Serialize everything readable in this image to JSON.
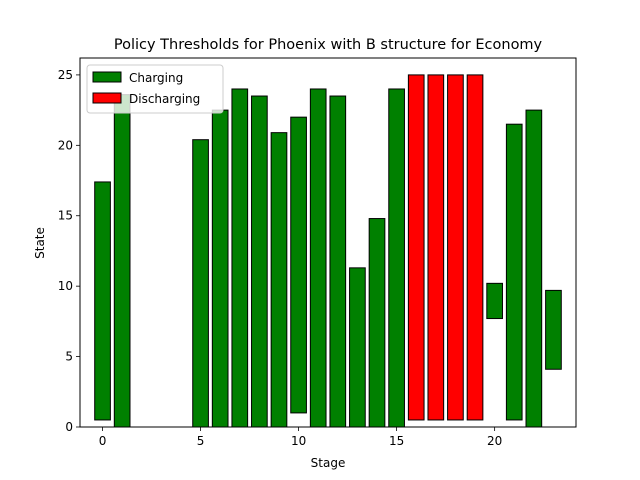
{
  "chart_data": {
    "type": "bar",
    "title": "Policy Thresholds for Phoenix with B structure for Economy",
    "xlabel": "Stage",
    "ylabel": "State",
    "xlim": [
      -1.15,
      24.15
    ],
    "ylim": [
      0,
      26.2
    ],
    "xticks": [
      0,
      5,
      10,
      15,
      20
    ],
    "yticks": [
      0,
      5,
      10,
      15,
      20,
      25
    ],
    "grid": false,
    "legend_placement": "top-left",
    "series": [
      {
        "name": "Charging",
        "color": "#008000",
        "bars": [
          {
            "x": 0,
            "bottom": 0.5,
            "top": 17.4
          },
          {
            "x": 1,
            "bottom": 0.0,
            "top": 23.6
          },
          {
            "x": 2,
            "bottom": 0.0,
            "top": 0.0
          },
          {
            "x": 3,
            "bottom": 0.0,
            "top": 0.0
          },
          {
            "x": 4,
            "bottom": 0.0,
            "top": 0.0
          },
          {
            "x": 5,
            "bottom": 0.0,
            "top": 20.4
          },
          {
            "x": 6,
            "bottom": 0.0,
            "top": 22.5
          },
          {
            "x": 7,
            "bottom": 0.0,
            "top": 24.0
          },
          {
            "x": 8,
            "bottom": 0.0,
            "top": 23.5
          },
          {
            "x": 9,
            "bottom": 0.0,
            "top": 20.9
          },
          {
            "x": 10,
            "bottom": 1.0,
            "top": 22.0
          },
          {
            "x": 11,
            "bottom": 0.0,
            "top": 24.0
          },
          {
            "x": 12,
            "bottom": 0.0,
            "top": 23.5
          },
          {
            "x": 13,
            "bottom": 0.0,
            "top": 11.3
          },
          {
            "x": 14,
            "bottom": 0.0,
            "top": 14.8
          },
          {
            "x": 15,
            "bottom": 0.0,
            "top": 24.0
          },
          {
            "x": 20,
            "bottom": 7.7,
            "top": 10.2
          },
          {
            "x": 21,
            "bottom": 0.5,
            "top": 21.5
          },
          {
            "x": 22,
            "bottom": 0.0,
            "top": 22.5
          },
          {
            "x": 23,
            "bottom": 4.1,
            "top": 9.7
          }
        ]
      },
      {
        "name": "Discharging",
        "color": "#ff0000",
        "bars": [
          {
            "x": 16,
            "bottom": 0.5,
            "top": 25.0
          },
          {
            "x": 17,
            "bottom": 0.5,
            "top": 25.0
          },
          {
            "x": 18,
            "bottom": 0.5,
            "top": 25.0
          },
          {
            "x": 19,
            "bottom": 0.5,
            "top": 25.0
          }
        ]
      }
    ]
  }
}
